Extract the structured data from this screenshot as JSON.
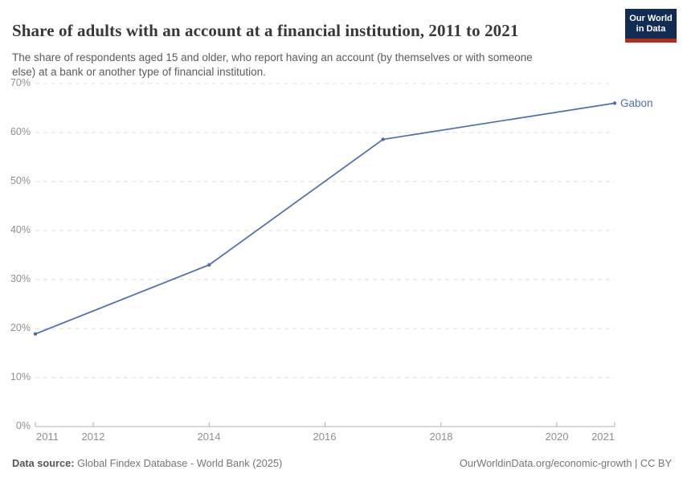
{
  "header": {
    "title": "Share of adults with an account at a financial institution, 2011 to 2021",
    "subtitle": "The share of respondents aged 15 and older, who report having an account (by themselves or with someone\nelse) at a bank or another type of financial institution.",
    "logo_line1": "Our World",
    "logo_line2": "in Data"
  },
  "chart_data": {
    "type": "line",
    "title": "Share of adults with an account at a financial institution, 2011 to 2021",
    "x": [
      2011,
      2014,
      2017,
      2021
    ],
    "series": [
      {
        "name": "Gabon",
        "values": [
          18.9,
          33.0,
          58.6,
          66.0
        ]
      }
    ],
    "entity_label": "Gabon",
    "xlim": [
      2011,
      2021
    ],
    "ylim": [
      0,
      70
    ],
    "y_ticks": [
      {
        "value": 0,
        "label": "0%"
      },
      {
        "value": 10,
        "label": "10%"
      },
      {
        "value": 20,
        "label": "20%"
      },
      {
        "value": 30,
        "label": "30%"
      },
      {
        "value": 40,
        "label": "40%"
      },
      {
        "value": 50,
        "label": "50%"
      },
      {
        "value": 60,
        "label": "60%"
      },
      {
        "value": 70,
        "label": "70%"
      }
    ],
    "x_ticks": [
      {
        "value": 2011,
        "label": "2011"
      },
      {
        "value": 2012,
        "label": "2012"
      },
      {
        "value": 2014,
        "label": "2014"
      },
      {
        "value": 2016,
        "label": "2016"
      },
      {
        "value": 2018,
        "label": "2018"
      },
      {
        "value": 2020,
        "label": "2020"
      },
      {
        "value": 2021,
        "label": "2021"
      }
    ],
    "grid": true,
    "legend_position": "end-of-line",
    "line_color": "#4D6EAC",
    "grid_color": "#dcdcdc",
    "axis_color": "#b0b0b0",
    "tick_label_color": "#8f8f8f"
  },
  "footer": {
    "datasource_label": "Data source:",
    "datasource_value": " Global Findex Database - World Bank (2025)",
    "link": "OurWorldinData.org/economic-growth | CC BY"
  }
}
